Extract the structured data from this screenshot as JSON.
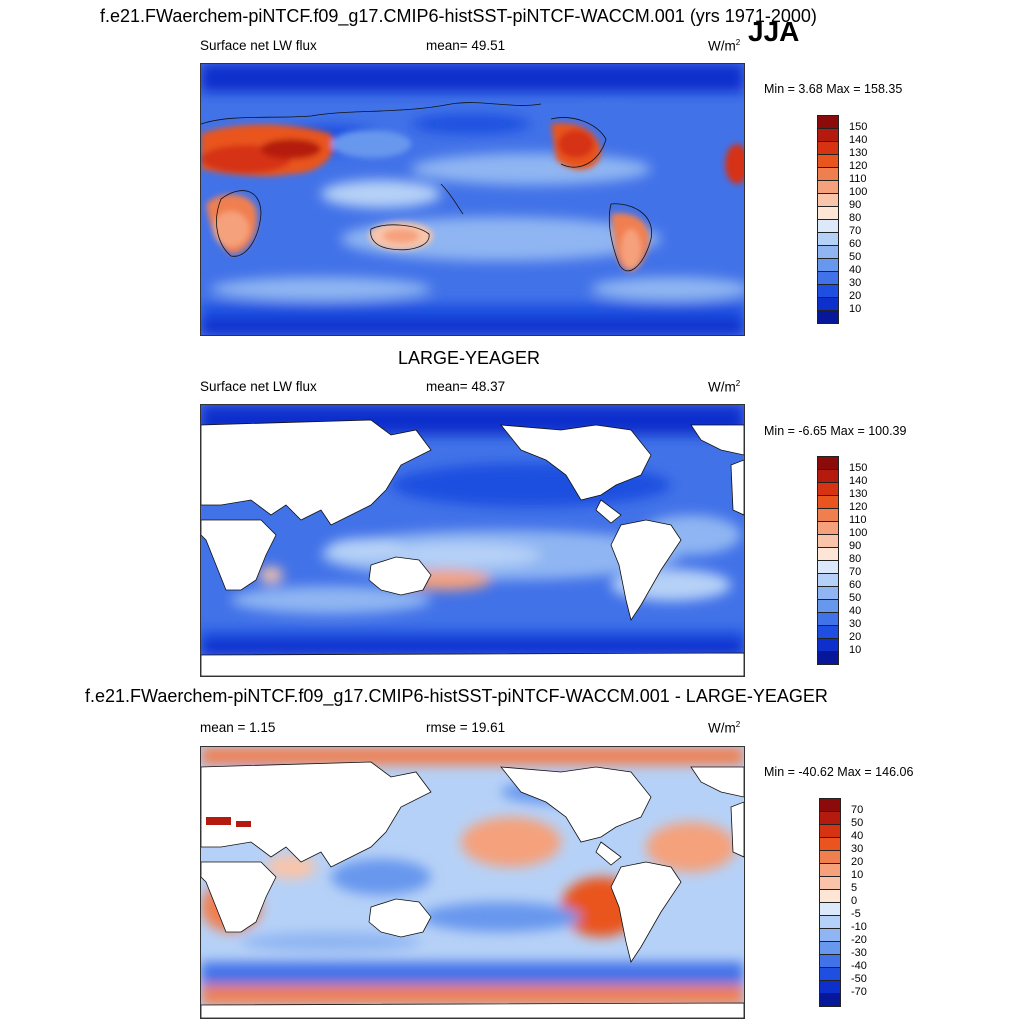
{
  "page_title": "f.e21.FWaerchem-piNTCF.f09_g17.CMIP6-histSST-piNTCF-WACCM.001 (yrs 1971-2000)",
  "season": "JJA",
  "panels": [
    {
      "id": "model",
      "variable": "Surface net LW flux",
      "stat_text": "mean=  49.51",
      "units": "W/m",
      "units_sup": "2",
      "minmax": "Min =   3.68 Max = 158.35",
      "scale": {
        "labels": [
          "150",
          "140",
          "130",
          "120",
          "110",
          "100",
          "90",
          "80",
          "70",
          "60",
          "50",
          "40",
          "30",
          "20",
          "10"
        ],
        "colors": [
          "#8b0a0a",
          "#b51a0f",
          "#d63313",
          "#e9541f",
          "#f07f50",
          "#f5a17c",
          "#f9c4a9",
          "#fde6d5",
          "#dbe9fb",
          "#b6d1f7",
          "#8fb5f2",
          "#6897ee",
          "#4272e8",
          "#1f4fe0",
          "#0d2fcc",
          "#06179a"
        ]
      }
    },
    {
      "id": "obs",
      "title": "LARGE-YEAGER",
      "variable": "Surface net LW flux",
      "stat_text": "mean=  48.37",
      "units": "W/m",
      "units_sup": "2",
      "minmax": "Min =  -6.65 Max = 100.39",
      "scale": {
        "labels": [
          "150",
          "140",
          "130",
          "120",
          "110",
          "100",
          "90",
          "80",
          "70",
          "60",
          "50",
          "40",
          "30",
          "20",
          "10"
        ],
        "colors": [
          "#8b0a0a",
          "#b51a0f",
          "#d63313",
          "#e9541f",
          "#f07f50",
          "#f5a17c",
          "#f9c4a9",
          "#fde6d5",
          "#dbe9fb",
          "#b6d1f7",
          "#8fb5f2",
          "#6897ee",
          "#4272e8",
          "#1f4fe0",
          "#0d2fcc",
          "#06179a"
        ]
      }
    },
    {
      "id": "diff",
      "title": "f.e21.FWaerchem-piNTCF.f09_g17.CMIP6-histSST-piNTCF-WACCM.001 - LARGE-YEAGER",
      "left_stat": "mean =   1.15",
      "stat_text": "rmse =  19.61",
      "units": "W/m",
      "units_sup": "2",
      "minmax": "Min = -40.62 Max = 146.06",
      "scale": {
        "labels": [
          "70",
          "50",
          "40",
          "30",
          "20",
          "10",
          "5",
          "0",
          "-5",
          "-10",
          "-20",
          "-30",
          "-40",
          "-50",
          "-70"
        ],
        "colors": [
          "#8b0a0a",
          "#b51a0f",
          "#d63313",
          "#e9541f",
          "#f07f50",
          "#f5a17c",
          "#f9c4a9",
          "#fde6d5",
          "#dbe9fb",
          "#b6d1f7",
          "#8fb5f2",
          "#6897ee",
          "#4272e8",
          "#1f4fe0",
          "#0d2fcc",
          "#06179a"
        ]
      }
    }
  ]
}
